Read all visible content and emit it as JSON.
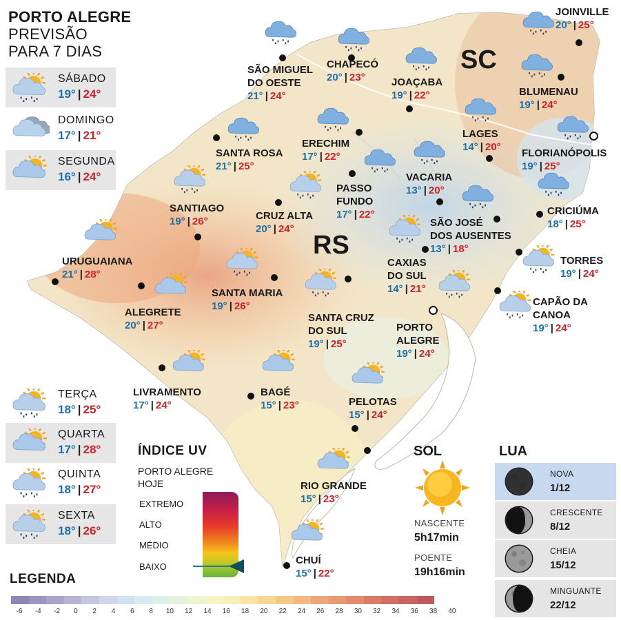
{
  "title": {
    "line1": "PORTO ALEGRE",
    "line2": "PREVISÃO",
    "line3": "PARA 7 DIAS"
  },
  "forecast": [
    {
      "day": "SÁBADO",
      "min": "19°",
      "max": "24°",
      "icon": "sun-cloud-rain-icon"
    },
    {
      "day": "DOMINGO",
      "min": "17°",
      "max": "21°",
      "icon": "cloudy-icon"
    },
    {
      "day": "SEGUNDA",
      "min": "16°",
      "max": "24°",
      "icon": "sun-cloud-icon"
    },
    {
      "day": "TERÇA",
      "min": "18°",
      "max": "25°",
      "icon": "sun-cloud-rain-icon"
    },
    {
      "day": "QUARTA",
      "min": "17°",
      "max": "28°",
      "icon": "sun-cloud-icon"
    },
    {
      "day": "QUINTA",
      "min": "18°",
      "max": "27°",
      "icon": "sun-cloud-rain-icon"
    },
    {
      "day": "SEXTA",
      "min": "18°",
      "max": "26°",
      "icon": "sun-cloud-rain-icon"
    }
  ],
  "states": {
    "sc": "SC",
    "rs": "RS"
  },
  "cities": [
    {
      "name": "JOINVILLE",
      "min": "20°",
      "max": "25°",
      "icon": "rain-cloud-icon"
    },
    {
      "name": "SÃO MIGUEL DO OESTE",
      "line1": "SÃO MIGUEL",
      "line2": "DO OESTE",
      "min": "21°",
      "max": "24°",
      "icon": "rain-cloud-icon"
    },
    {
      "name": "CHAPECÓ",
      "min": "20°",
      "max": "23°",
      "icon": "rain-cloud-icon"
    },
    {
      "name": "JOAÇABA",
      "min": "19°",
      "max": "22°",
      "icon": "rain-cloud-icon"
    },
    {
      "name": "BLUMENAU",
      "min": "19°",
      "max": "24°",
      "icon": "rain-cloud-icon"
    },
    {
      "name": "SANTA ROSA",
      "min": "21°",
      "max": "25°",
      "icon": "rain-cloud-icon"
    },
    {
      "name": "ERECHIM",
      "min": "17°",
      "max": "22°",
      "icon": "rain-cloud-icon"
    },
    {
      "name": "LAGES",
      "min": "14°",
      "max": "20°",
      "icon": "rain-cloud-icon"
    },
    {
      "name": "FLORIANÓPOLIS",
      "min": "19°",
      "max": "25°",
      "icon": "rain-cloud-icon"
    },
    {
      "name": "SANTIAGO",
      "min": "19°",
      "max": "26°",
      "icon": "sun-cloud-rain-icon"
    },
    {
      "name": "CRUZ ALTA",
      "min": "20°",
      "max": "24°",
      "icon": "sun-cloud-rain-icon"
    },
    {
      "name": "PASSO FUNDO",
      "line1": "PASSO",
      "line2": "FUNDO",
      "min": "17°",
      "max": "22°",
      "icon": "rain-cloud-icon"
    },
    {
      "name": "VACARIA",
      "min": "13°",
      "max": "20°",
      "icon": "rain-cloud-icon"
    },
    {
      "name": "SÃO JOSÉ DOS AUSENTES",
      "line1": "SÃO JOSÉ",
      "line2": "DOS AUSENTES",
      "min": "13°",
      "max": "18°",
      "icon": "rain-cloud-icon"
    },
    {
      "name": "CRICIÚMA",
      "min": "18°",
      "max": "25°",
      "icon": "rain-cloud-icon"
    },
    {
      "name": "URUGUAIANA",
      "min": "21°",
      "max": "28°",
      "icon": "sun-cloud-icon"
    },
    {
      "name": "ALEGRETE",
      "min": "20°",
      "max": "27°",
      "icon": "sun-cloud-icon"
    },
    {
      "name": "SANTA MARIA",
      "min": "19°",
      "max": "26°",
      "icon": "sun-cloud-rain-icon"
    },
    {
      "name": "SANTA CRUZ DO SUL",
      "line1": "SANTA CRUZ",
      "line2": "DO SUL",
      "min": "19°",
      "max": "25°",
      "icon": "sun-cloud-rain-icon"
    },
    {
      "name": "CAXIAS DO SUL",
      "line1": "CAXIAS",
      "line2": "DO SUL",
      "min": "14°",
      "max": "21°",
      "icon": "sun-cloud-rain-icon"
    },
    {
      "name": "TORRES",
      "min": "19°",
      "max": "24°",
      "icon": "sun-cloud-rain-icon"
    },
    {
      "name": "CAPÃO DA CANOA",
      "line1": "CAPÃO DA",
      "line2": "CANOA",
      "min": "19°",
      "max": "24°",
      "icon": "sun-cloud-rain-icon"
    },
    {
      "name": "PORTO ALEGRE",
      "line1": "PORTO",
      "line2": "ALEGRE",
      "min": "19°",
      "max": "24°",
      "icon": "sun-cloud-rain-icon"
    },
    {
      "name": "LIVRAMENTO",
      "min": "17°",
      "max": "24°",
      "icon": "sun-cloud-icon"
    },
    {
      "name": "BAGÉ",
      "min": "15°",
      "max": "23°",
      "icon": "sun-cloud-icon"
    },
    {
      "name": "PELOTAS",
      "min": "15°",
      "max": "24°",
      "icon": "sun-cloud-icon"
    },
    {
      "name": "RIO GRANDE",
      "min": "15°",
      "max": "23°",
      "icon": "sun-cloud-icon"
    },
    {
      "name": "CHUÍ",
      "min": "15°",
      "max": "22°",
      "icon": "sun-cloud-icon"
    }
  ],
  "uv": {
    "title": "ÍNDICE UV",
    "sub1": "PORTO ALEGRE",
    "sub2": "HOJE",
    "levels": [
      "EXTREMO",
      "ALTO",
      "MÉDIO",
      "BAIXO"
    ],
    "current": "BAIXO"
  },
  "sol": {
    "title": "SOL",
    "rise_label": "NASCENTE",
    "rise": "5h17min",
    "set_label": "POENTE",
    "set": "19h16min"
  },
  "lua": {
    "title": "LUA",
    "phases": [
      {
        "phase": "NOVA",
        "date": "1/12",
        "icon": "new-moon-icon",
        "highlight": true
      },
      {
        "phase": "CRESCENTE",
        "date": "8/12",
        "icon": "waxing-moon-icon",
        "highlight": false
      },
      {
        "phase": "CHEIA",
        "date": "15/12",
        "icon": "full-moon-icon",
        "highlight": false
      },
      {
        "phase": "MINGUANTE",
        "date": "22/12",
        "icon": "waning-moon-icon",
        "highlight": false
      }
    ]
  },
  "legend": {
    "title": "LEGENDA",
    "ticks": [
      "-6",
      "-4",
      "-2",
      "0",
      "2",
      "4",
      "6",
      "8",
      "10",
      "12",
      "14",
      "16",
      "18",
      "20",
      "22",
      "24",
      "26",
      "28",
      "30",
      "32",
      "34",
      "36",
      "38",
      "40"
    ],
    "colors": [
      "#8f86b4",
      "#9c95c0",
      "#aaa4cb",
      "#b9b4d6",
      "#c6c6e2",
      "#cfd7ec",
      "#d3e2f0",
      "#d7ebf1",
      "#dcf0ea",
      "#e3f3df",
      "#ecf5d2",
      "#f4f4c6",
      "#f8efb7",
      "#f9e4a4",
      "#f8d694",
      "#f5c789",
      "#f1b882",
      "#eca87b",
      "#e89a75",
      "#e28b70",
      "#db7c6b",
      "#d46f68",
      "#cb6364",
      "#c2585f"
    ]
  }
}
